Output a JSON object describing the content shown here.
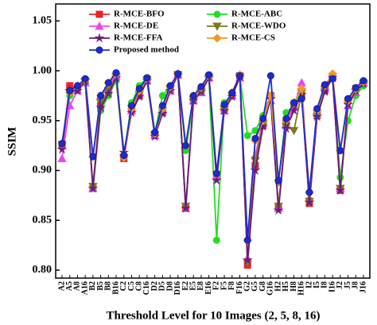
{
  "chart_data": {
    "type": "line",
    "x_label": "Threshold Level for 10 Images (2, 5, 8, 16)",
    "y_label": "SSIM",
    "categories": [
      "A2",
      "A5",
      "A8",
      "A16",
      "B2",
      "B5",
      "B8",
      "B16",
      "C2",
      "C5",
      "C8",
      "C16",
      "D2",
      "D5",
      "D8",
      "D16",
      "E2",
      "E5",
      "E8",
      "E16",
      "F2",
      "F5",
      "F8",
      "F16",
      "G2",
      "G5",
      "G8",
      "G16",
      "H2",
      "H5",
      "H8",
      "H16",
      "I2",
      "I5",
      "I8",
      "I16",
      "J2",
      "J5",
      "J8",
      "J16"
    ],
    "ylim": [
      0.792,
      1.067
    ],
    "yticks": [
      {
        "value": 0.8,
        "label": "0.80"
      },
      0.85,
      {
        "value": 0.9,
        "label": "0.90"
      },
      0.95,
      {
        "value": 1,
        "label": "1.00"
      },
      1.05
    ],
    "series": [
      {
        "name": "R-MCE-BFO",
        "color": "#e8232a",
        "marker": "square",
        "values": [
          0.925,
          0.985,
          0.982,
          0.99,
          0.882,
          0.965,
          0.978,
          0.993,
          0.912,
          0.96,
          0.975,
          0.99,
          0.935,
          0.958,
          0.98,
          0.996,
          0.862,
          0.972,
          0.98,
          0.994,
          0.895,
          0.962,
          0.975,
          0.995,
          0.805,
          0.905,
          0.945,
          0.975,
          0.862,
          0.945,
          0.965,
          0.975,
          0.867,
          0.955,
          0.98,
          0.993,
          0.88,
          0.97,
          0.982,
          0.988
        ]
      },
      {
        "name": "R-MCE-ABC",
        "color": "#22dd22",
        "marker": "circle",
        "values": [
          0.927,
          0.975,
          0.98,
          0.99,
          0.882,
          0.96,
          0.975,
          0.99,
          0.915,
          0.968,
          0.985,
          0.993,
          0.938,
          0.975,
          0.985,
          0.997,
          0.92,
          0.97,
          0.98,
          0.993,
          0.83,
          0.968,
          0.976,
          0.995,
          0.935,
          0.94,
          0.955,
          0.975,
          0.888,
          0.958,
          0.965,
          0.98,
          0.87,
          0.955,
          0.982,
          0.993,
          0.893,
          0.95,
          0.975,
          0.985
        ]
      },
      {
        "name": "R-MCE-DE",
        "color": "#ee44ee",
        "marker": "triangle",
        "values": [
          0.912,
          0.965,
          0.98,
          0.988,
          0.882,
          0.975,
          0.985,
          0.995,
          0.918,
          0.96,
          0.978,
          0.99,
          0.935,
          0.96,
          0.98,
          0.996,
          0.862,
          0.97,
          0.978,
          0.993,
          0.895,
          0.96,
          0.975,
          0.993,
          0.812,
          0.915,
          0.95,
          0.97,
          0.862,
          0.945,
          0.965,
          0.988,
          0.872,
          0.96,
          0.985,
          0.995,
          0.882,
          0.965,
          0.978,
          0.988
        ]
      },
      {
        "name": "R-MCE-WDO",
        "color": "#7a7a1a",
        "marker": "triangle-down",
        "values": [
          0.926,
          0.978,
          0.981,
          0.989,
          0.884,
          0.968,
          0.98,
          0.994,
          0.913,
          0.962,
          0.976,
          0.991,
          0.936,
          0.96,
          0.982,
          0.996,
          0.864,
          0.971,
          0.979,
          0.993,
          0.896,
          0.961,
          0.975,
          0.994,
          0.808,
          0.91,
          0.946,
          0.972,
          0.864,
          0.944,
          0.94,
          0.978,
          0.869,
          0.957,
          0.981,
          0.994,
          0.882,
          0.967,
          0.979,
          0.987
        ]
      },
      {
        "name": "R-MCE-FFA",
        "color": "#6a1b7a",
        "marker": "star",
        "values": [
          0.921,
          0.98,
          0.98,
          0.99,
          0.882,
          0.963,
          0.977,
          0.993,
          0.918,
          0.958,
          0.974,
          0.99,
          0.934,
          0.957,
          0.98,
          0.996,
          0.862,
          0.97,
          0.979,
          0.993,
          0.89,
          0.96,
          0.974,
          0.994,
          0.81,
          0.9,
          0.944,
          0.972,
          0.86,
          0.942,
          0.96,
          0.976,
          0.868,
          0.954,
          0.979,
          0.993,
          0.88,
          0.966,
          0.98,
          0.987
        ]
      },
      {
        "name": "R-MCE-CS",
        "color": "#f0962a",
        "marker": "diamond",
        "values": [
          0.927,
          0.978,
          0.985,
          0.991,
          0.914,
          0.975,
          0.988,
          0.996,
          0.913,
          0.962,
          0.98,
          0.992,
          0.937,
          0.962,
          0.984,
          0.997,
          0.925,
          0.975,
          0.983,
          0.995,
          0.897,
          0.965,
          0.978,
          0.996,
          0.83,
          0.93,
          0.95,
          0.975,
          0.89,
          0.95,
          0.968,
          0.982,
          0.878,
          0.96,
          0.985,
          0.997,
          0.92,
          0.97,
          0.982,
          0.989
        ]
      },
      {
        "name": "Proposed method",
        "color": "#1a2bd0",
        "marker": "circle",
        "values": [
          0.927,
          0.98,
          0.985,
          0.992,
          0.914,
          0.975,
          0.988,
          0.998,
          0.915,
          0.965,
          0.982,
          0.993,
          0.938,
          0.965,
          0.985,
          0.997,
          0.925,
          0.975,
          0.984,
          0.996,
          0.897,
          0.966,
          0.978,
          0.995,
          0.83,
          0.932,
          0.952,
          0.995,
          0.89,
          0.952,
          0.968,
          0.972,
          0.878,
          0.962,
          0.986,
          0.992,
          0.92,
          0.972,
          0.983,
          0.99
        ]
      }
    ]
  }
}
